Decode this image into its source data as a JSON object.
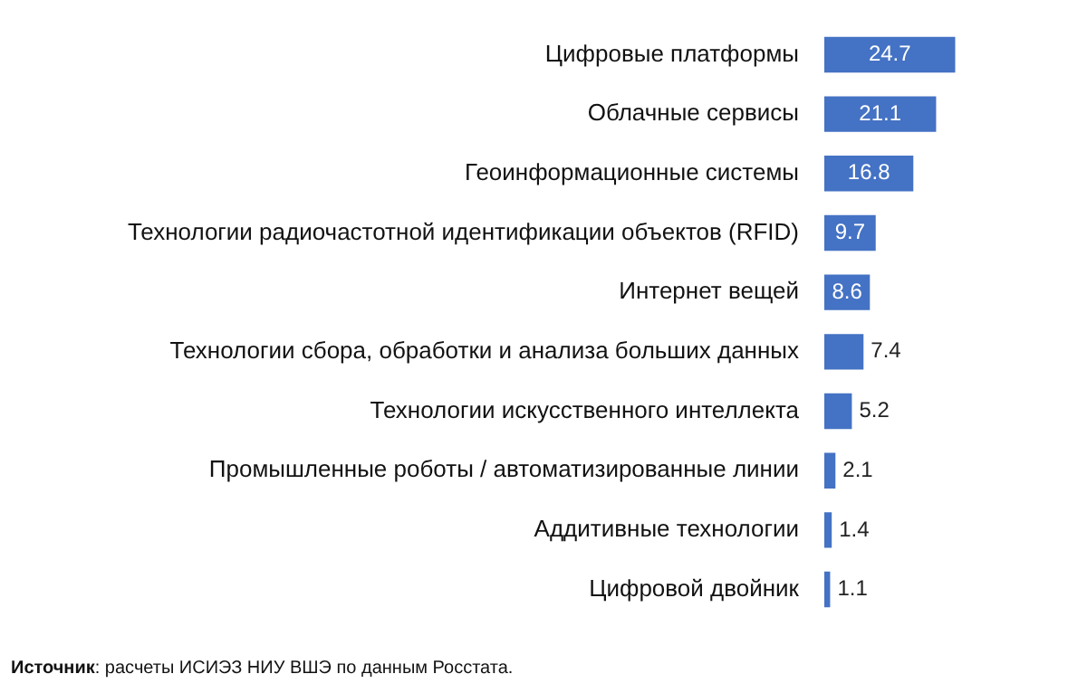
{
  "chart_data": {
    "type": "bar",
    "orientation": "horizontal",
    "categories": [
      "Цифровые платформы",
      "Облачные сервисы",
      "Геоинформационные системы",
      "Технологии радиочастотной идентификации объектов (RFID)",
      "Интернет вещей",
      "Технологии сбора, обработки и анализа больших данных",
      "Технологии искусственного интеллекта",
      "Промышленные роботы / автоматизированные линии",
      "Аддитивные технологии",
      "Цифровой двойник"
    ],
    "values": [
      24.7,
      21.1,
      16.8,
      9.7,
      8.6,
      7.4,
      5.2,
      2.1,
      1.4,
      1.1
    ],
    "color": "#4472c4",
    "data_labels": true,
    "legend": false,
    "annotations": [
      "**Источник**: расчеты ИСИЭЗ НИУ ВШЭ по данным Росстата."
    ]
  }
}
